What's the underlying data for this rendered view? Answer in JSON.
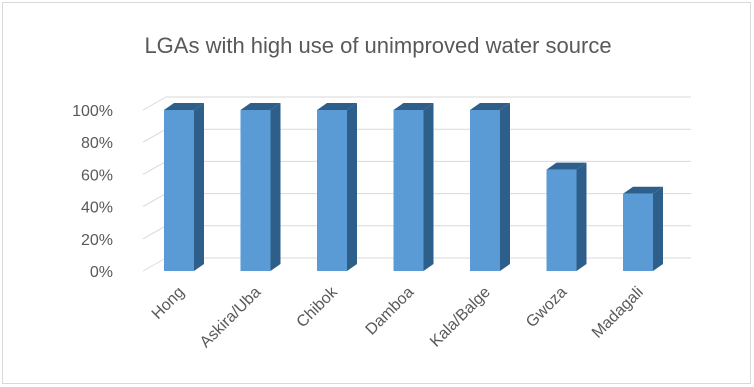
{
  "chart_data": {
    "type": "bar",
    "style": "3d-column",
    "title": "LGAs with high use of unimproved water source",
    "xlabel": "",
    "ylabel": "",
    "categories": [
      "Hong",
      "Askira/Uba",
      "Chibok",
      "Damboa",
      "Kala/Balge",
      "Gwoza",
      "Madagali"
    ],
    "values": [
      100,
      100,
      100,
      100,
      100,
      63,
      48
    ],
    "ylim": [
      0,
      100
    ],
    "yticks": [
      "0%",
      "20%",
      "40%",
      "60%",
      "80%",
      "100%"
    ],
    "grid": true,
    "legend": "none",
    "colors": {
      "bar_front": "#5b9bd5",
      "bar_side": "#2e5f8a",
      "bar_top": "#2e5f8a",
      "grid": "#d9d9d9",
      "text": "#595959"
    }
  }
}
